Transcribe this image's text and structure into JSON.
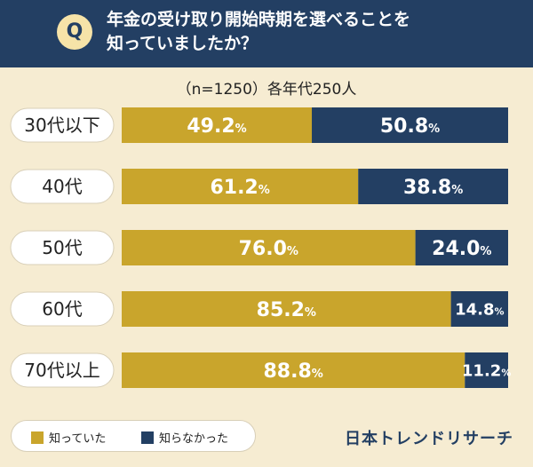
{
  "header": {
    "badge": "Q",
    "question_line1": "年金の受け取り開始時期を選べることを",
    "question_line2": "知っていましたか？"
  },
  "subtitle": "（n=1250）各年代250人",
  "legend": {
    "known": "知っていた",
    "unknown": "知らなかった"
  },
  "brand": "日本トレンドリサーチ",
  "colors": {
    "known": "#c9a52c",
    "unknown": "#233f63",
    "header": "#233f63",
    "background": "#f6ecd2"
  },
  "chart_data": {
    "type": "bar",
    "orientation": "horizontal",
    "stacked": true,
    "unit": "%",
    "categories": [
      "30代以下",
      "40代",
      "50代",
      "60代",
      "70代以上"
    ],
    "series": [
      {
        "name": "知っていた",
        "values": [
          49.2,
          61.2,
          76.0,
          85.2,
          88.8
        ]
      },
      {
        "name": "知らなかった",
        "values": [
          50.8,
          38.8,
          24.0,
          14.8,
          11.2
        ]
      }
    ],
    "labels": [
      [
        "49.2",
        "50.8"
      ],
      [
        "61.2",
        "38.8"
      ],
      [
        "76.0",
        "24.0"
      ],
      [
        "85.2",
        "14.8"
      ],
      [
        "88.8",
        "11.2"
      ]
    ],
    "xlim": [
      0,
      100
    ],
    "legend": "bottom-left",
    "grid": false
  }
}
